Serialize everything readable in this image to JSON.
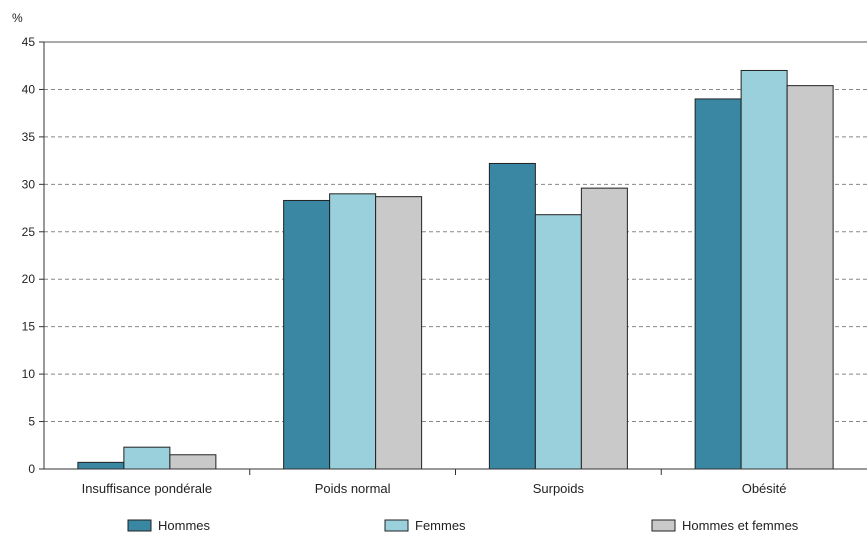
{
  "chart_data": {
    "type": "bar",
    "title": "",
    "xlabel": "",
    "ylabel": "%",
    "ylim": [
      0,
      45
    ],
    "y_ticks": [
      0,
      5,
      10,
      15,
      20,
      25,
      30,
      35,
      40,
      45
    ],
    "grid": true,
    "grid_style": "dashed",
    "legend_position": "bottom",
    "categories": [
      "Insuffisance pondérale",
      "Poids normal",
      "Surpoids",
      "Obésité"
    ],
    "series": [
      {
        "name": "Hommes",
        "color": "#3a87a3",
        "values": [
          0.7,
          28.3,
          32.2,
          39.0
        ]
      },
      {
        "name": "Femmes",
        "color": "#9ad0dc",
        "values": [
          2.3,
          29.0,
          26.8,
          42.0
        ]
      },
      {
        "name": "Hommes et femmes",
        "color": "#c9c9c9",
        "values": [
          1.5,
          28.7,
          29.6,
          40.4
        ]
      }
    ]
  }
}
